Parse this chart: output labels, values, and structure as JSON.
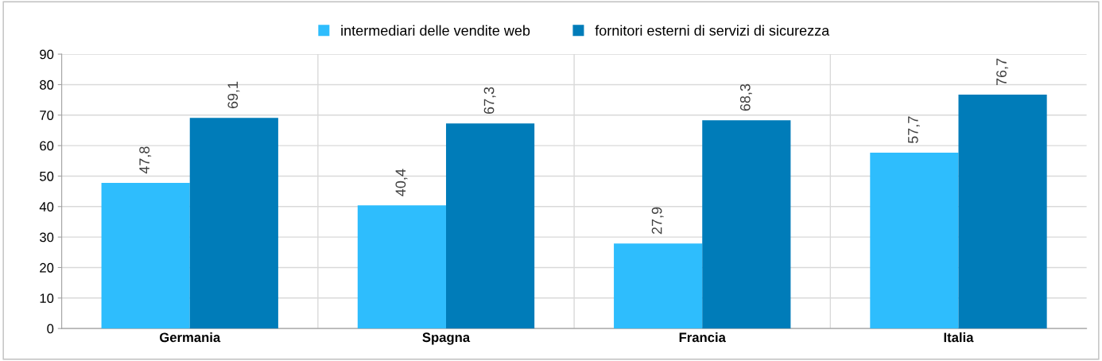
{
  "chart_data": {
    "type": "bar",
    "categories": [
      "Germania",
      "Spagna",
      "Francia",
      "Italia"
    ],
    "series": [
      {
        "name": "intermediari delle vendite web",
        "color": "#2ebdfd",
        "values": [
          47.8,
          40.4,
          27.9,
          57.7
        ],
        "value_labels": [
          "47,8",
          "40,4",
          "27,9",
          "57,7"
        ]
      },
      {
        "name": "fornitori esterni di servizi di sicurezza",
        "color": "#007cb9",
        "values": [
          69.1,
          67.3,
          68.3,
          76.7
        ],
        "value_labels": [
          "69,1",
          "67,3",
          "68,3",
          "76,7"
        ]
      }
    ],
    "ylim": [
      0,
      90
    ],
    "yticks": [
      0,
      10,
      20,
      30,
      40,
      50,
      60,
      70,
      80,
      90
    ],
    "grid": true,
    "legend": "top"
  }
}
